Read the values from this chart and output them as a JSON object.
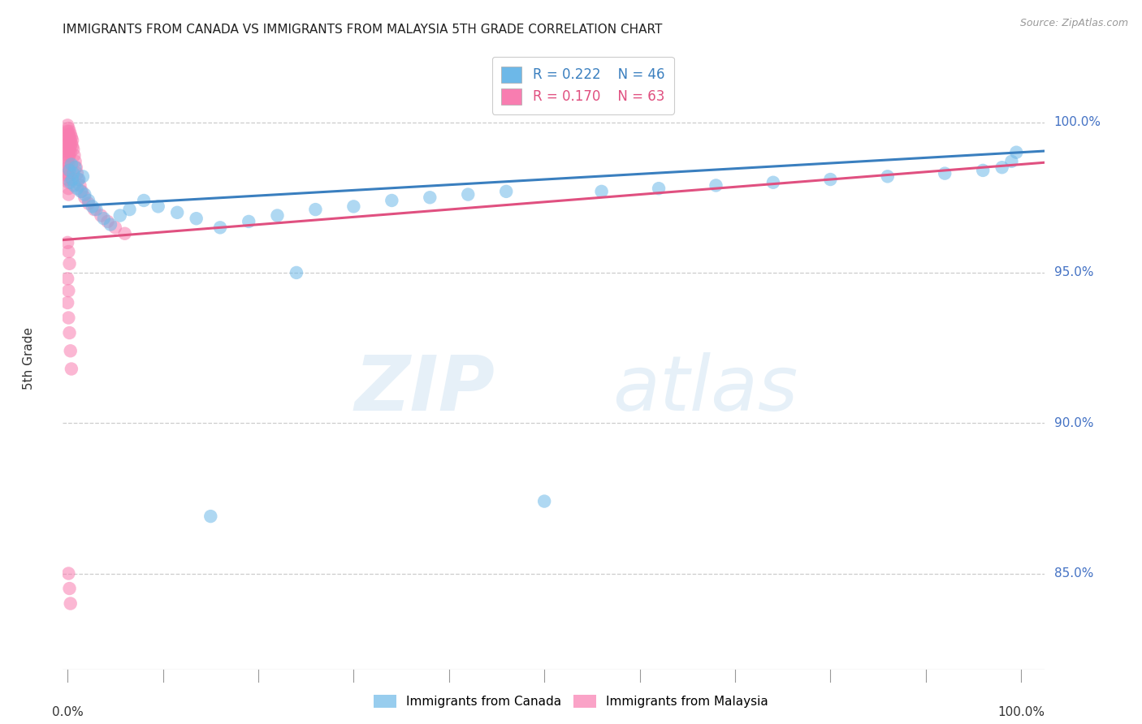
{
  "title": "IMMIGRANTS FROM CANADA VS IMMIGRANTS FROM MALAYSIA 5TH GRADE CORRELATION CHART",
  "source": "Source: ZipAtlas.com",
  "ylabel": "5th Grade",
  "watermark_zip": "ZIP",
  "watermark_atlas": "atlas",
  "ytick_labels": [
    "100.0%",
    "95.0%",
    "90.0%",
    "85.0%"
  ],
  "ytick_values": [
    1.0,
    0.95,
    0.9,
    0.85
  ],
  "ymin": 0.818,
  "ymax": 1.025,
  "xmin": -0.005,
  "xmax": 1.025,
  "legend_canada": "Immigrants from Canada",
  "legend_malaysia": "Immigrants from Malaysia",
  "R_canada": 0.222,
  "N_canada": 46,
  "R_malaysia": 0.17,
  "N_malaysia": 63,
  "color_canada": "#6db8e8",
  "color_malaysia": "#f87db0",
  "color_line_canada": "#3a7fbf",
  "color_line_malaysia": "#e05080",
  "canada_x": [
    0.002,
    0.003,
    0.004,
    0.005,
    0.006,
    0.007,
    0.008,
    0.01,
    0.012,
    0.014,
    0.016,
    0.018,
    0.022,
    0.026,
    0.03,
    0.038,
    0.045,
    0.055,
    0.065,
    0.08,
    0.095,
    0.115,
    0.135,
    0.16,
    0.19,
    0.22,
    0.26,
    0.3,
    0.34,
    0.38,
    0.42,
    0.46,
    0.5,
    0.56,
    0.62,
    0.68,
    0.74,
    0.8,
    0.86,
    0.92,
    0.96,
    0.98,
    0.99,
    0.995,
    0.15,
    0.24
  ],
  "canada_y": [
    0.984,
    0.98,
    0.986,
    0.981,
    0.983,
    0.979,
    0.985,
    0.978,
    0.981,
    0.977,
    0.982,
    0.976,
    0.974,
    0.972,
    0.971,
    0.968,
    0.966,
    0.969,
    0.971,
    0.974,
    0.972,
    0.97,
    0.968,
    0.965,
    0.967,
    0.969,
    0.971,
    0.972,
    0.974,
    0.975,
    0.976,
    0.977,
    0.874,
    0.977,
    0.978,
    0.979,
    0.98,
    0.981,
    0.982,
    0.983,
    0.984,
    0.985,
    0.987,
    0.99,
    0.869,
    0.95
  ],
  "malaysia_x": [
    0.0,
    0.0,
    0.0,
    0.0,
    0.0,
    0.0,
    0.0,
    0.0,
    0.0,
    0.0,
    0.001,
    0.001,
    0.001,
    0.001,
    0.001,
    0.001,
    0.001,
    0.001,
    0.001,
    0.001,
    0.001,
    0.001,
    0.002,
    0.002,
    0.002,
    0.002,
    0.002,
    0.003,
    0.003,
    0.003,
    0.003,
    0.004,
    0.004,
    0.005,
    0.005,
    0.006,
    0.007,
    0.008,
    0.009,
    0.01,
    0.011,
    0.013,
    0.015,
    0.018,
    0.022,
    0.028,
    0.035,
    0.042,
    0.05,
    0.06,
    0.0,
    0.001,
    0.002,
    0.0,
    0.001,
    0.0,
    0.001,
    0.002,
    0.003,
    0.004,
    0.001,
    0.002,
    0.003
  ],
  "malaysia_y": [
    0.999,
    0.997,
    0.995,
    0.993,
    0.991,
    0.989,
    0.987,
    0.985,
    0.983,
    0.981,
    0.998,
    0.996,
    0.994,
    0.992,
    0.99,
    0.988,
    0.986,
    0.984,
    0.982,
    0.98,
    0.978,
    0.976,
    0.997,
    0.995,
    0.993,
    0.991,
    0.989,
    0.996,
    0.994,
    0.992,
    0.99,
    0.995,
    0.993,
    0.994,
    0.992,
    0.991,
    0.989,
    0.987,
    0.985,
    0.983,
    0.981,
    0.979,
    0.977,
    0.975,
    0.973,
    0.971,
    0.969,
    0.967,
    0.965,
    0.963,
    0.96,
    0.957,
    0.953,
    0.948,
    0.944,
    0.94,
    0.935,
    0.93,
    0.924,
    0.918,
    0.85,
    0.845,
    0.84
  ]
}
